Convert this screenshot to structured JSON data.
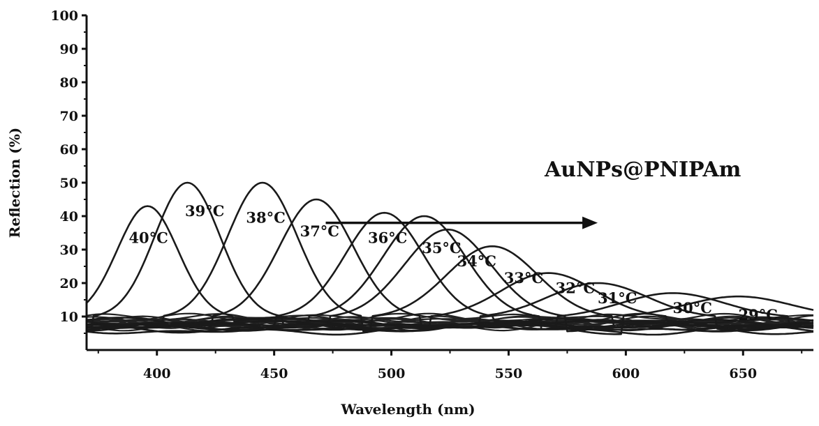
{
  "chart_data": {
    "type": "line",
    "title": "",
    "xlabel": "Wavelength (nm)",
    "ylabel": "Reflection (%)",
    "xlim": [
      370,
      680
    ],
    "ylim": [
      0,
      100
    ],
    "x_ticks": [
      "400",
      "450",
      "500",
      "550",
      "600",
      "650"
    ],
    "y_ticks": [
      "100",
      "90",
      "80",
      "70",
      "60",
      "50",
      "40",
      "30",
      "20",
      "10"
    ],
    "grid": false,
    "annotation": {
      "text": "AuNPs@PNIPAm",
      "arrow_from_x": 472,
      "arrow_to_x": 588,
      "arrow_y": 38
    },
    "series": [
      {
        "name": "40°C",
        "peak_wavelength": 396,
        "peak_reflection": 43,
        "label_x": 388,
        "label_y": 32
      },
      {
        "name": "39°C",
        "peak_wavelength": 413,
        "peak_reflection": 50,
        "label_x": 412,
        "label_y": 40
      },
      {
        "name": "38°C",
        "peak_wavelength": 445,
        "peak_reflection": 50,
        "label_x": 438,
        "label_y": 38
      },
      {
        "name": "37°C",
        "peak_wavelength": 468,
        "peak_reflection": 45,
        "label_x": 461,
        "label_y": 34
      },
      {
        "name": "36°C",
        "peak_wavelength": 497,
        "peak_reflection": 41,
        "label_x": 490,
        "label_y": 32
      },
      {
        "name": "35°C",
        "peak_wavelength": 514,
        "peak_reflection": 40,
        "label_x": 513,
        "label_y": 29
      },
      {
        "name": "34°C",
        "peak_wavelength": 524,
        "peak_reflection": 36,
        "label_x": 528,
        "label_y": 25
      },
      {
        "name": "33°C",
        "peak_wavelength": 543,
        "peak_reflection": 31,
        "label_x": 548,
        "label_y": 20
      },
      {
        "name": "32°C",
        "peak_wavelength": 567,
        "peak_reflection": 23,
        "label_x": 570,
        "label_y": 17
      },
      {
        "name": "31°C",
        "peak_wavelength": 588,
        "peak_reflection": 20,
        "label_x": 588,
        "label_y": 14
      },
      {
        "name": "30°C",
        "peak_wavelength": 620,
        "peak_reflection": 17,
        "label_x": 620,
        "label_y": 11
      },
      {
        "name": "29°C",
        "peak_wavelength": 648,
        "peak_reflection": 16,
        "label_x": 648,
        "label_y": 9
      }
    ]
  }
}
